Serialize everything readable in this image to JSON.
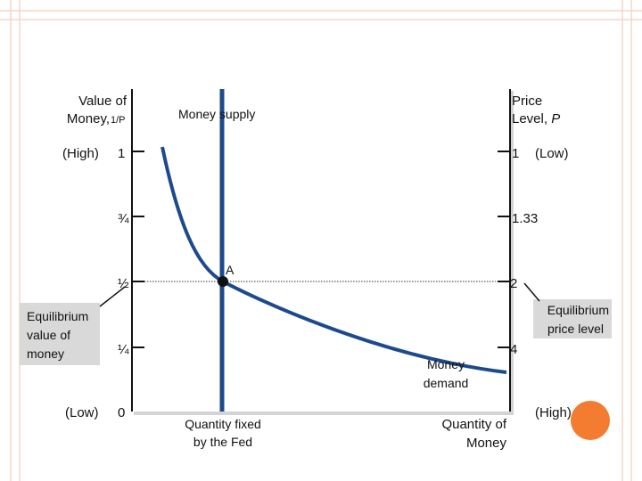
{
  "left_axis": {
    "title_line1": "Value of",
    "title_line2": "Money, ",
    "title_sub": "1/P",
    "high": "(High)",
    "low": "(Low)",
    "ticks": [
      "1",
      "¾",
      "½",
      "¼",
      "0"
    ]
  },
  "right_axis": {
    "title_line1": "Price",
    "title_line2": "Level, ",
    "title_italic": "P",
    "low": "(Low)",
    "high": "(High)",
    "ticks": [
      "1",
      "1.33",
      "2",
      "4"
    ]
  },
  "labels": {
    "money_supply": "Money supply",
    "point": "A",
    "money_demand_1": "Money",
    "money_demand_2": "demand",
    "qty_fixed_1": "Quantity fixed",
    "qty_fixed_2": "by the Fed",
    "qty_money_1": "Quantity of",
    "qty_money_2": "Money"
  },
  "callouts": {
    "left": [
      "Equilibrium",
      "value of",
      "money"
    ],
    "right": [
      "Equilibrium",
      "price level"
    ]
  }
}
